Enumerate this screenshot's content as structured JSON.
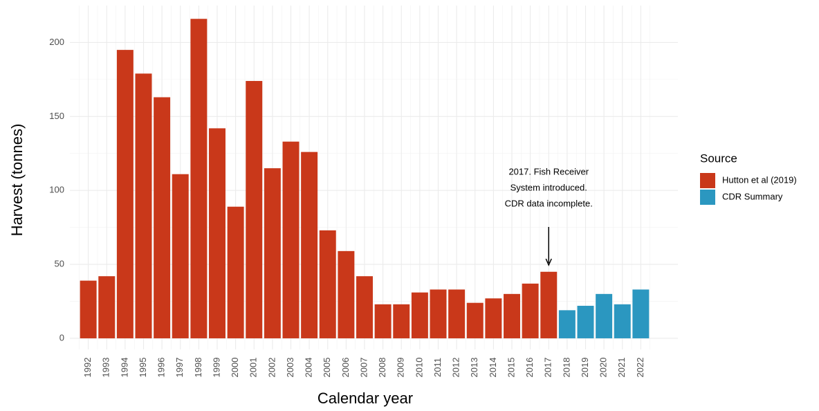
{
  "chart_data": {
    "type": "bar",
    "y_label": "Harvest (tonnes)",
    "x_label": "Calendar year",
    "categories": [
      "1992",
      "1993",
      "1994",
      "1995",
      "1996",
      "1997",
      "1998",
      "1999",
      "2000",
      "2001",
      "2002",
      "2003",
      "2004",
      "2005",
      "2006",
      "2007",
      "2008",
      "2009",
      "2010",
      "2011",
      "2012",
      "2013",
      "2014",
      "2015",
      "2016",
      "2017",
      "2018",
      "2019",
      "2020",
      "2021",
      "2022"
    ],
    "series": [
      {
        "name": "Hutton et al (2019)",
        "color": "#c9381a",
        "values": [
          39,
          42,
          195,
          179,
          163,
          111,
          216,
          142,
          89,
          174,
          115,
          133,
          126,
          73,
          59,
          42,
          23,
          23,
          31,
          33,
          33,
          24,
          27,
          30,
          37,
          45,
          null,
          null,
          null,
          null,
          null
        ]
      },
      {
        "name": "CDR Summary",
        "color": "#2b97c0",
        "values": [
          null,
          null,
          null,
          null,
          null,
          null,
          null,
          null,
          null,
          null,
          null,
          null,
          null,
          null,
          null,
          null,
          null,
          null,
          null,
          null,
          null,
          null,
          null,
          null,
          null,
          null,
          19,
          22,
          30,
          23,
          33
        ]
      }
    ],
    "legend_title": "Source",
    "annotation": [
      "2017. Fish Receiver",
      "System introduced.",
      "CDR data incomplete."
    ],
    "ylim": [
      -7.5,
      225
    ],
    "yticks": [
      0,
      50,
      100,
      150,
      200
    ],
    "grid": true
  }
}
